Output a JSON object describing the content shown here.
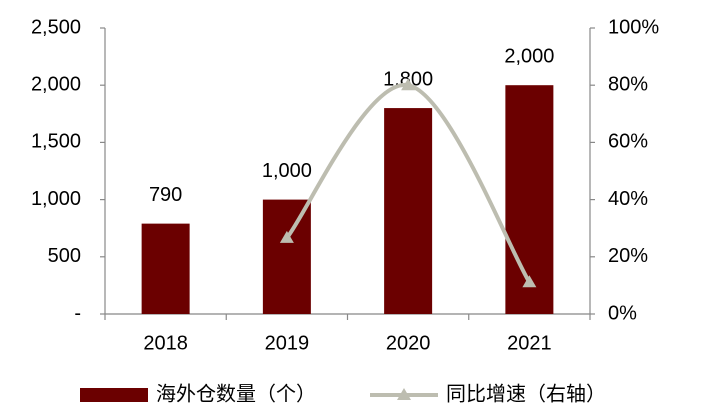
{
  "chart_data": {
    "type": "bar",
    "categories": [
      "2018",
      "2019",
      "2020",
      "2021"
    ],
    "series": [
      {
        "name": "海外仓数量（个）",
        "type": "bar",
        "color": "#6b0000",
        "values": [
          790,
          1000,
          1800,
          2000
        ],
        "value_labels": [
          "790",
          "1,000",
          "1,800",
          "2,000"
        ]
      },
      {
        "name": "同比增速（右轴）",
        "type": "line",
        "axis": "y2",
        "color": "#bdbdb0",
        "values": [
          null,
          26.6,
          80,
          11.1
        ]
      }
    ],
    "ylim": [
      0,
      2500
    ],
    "yticks": [
      {
        "value": 0,
        "label": "-"
      },
      500,
      {
        "value": 1000,
        "label": "1,000"
      },
      {
        "value": 1500,
        "label": "1,500"
      },
      {
        "value": 2000,
        "label": "2,000"
      },
      {
        "value": 2500,
        "label": "2,500"
      }
    ],
    "y2lim": [
      0,
      100
    ],
    "y2ticks": [
      {
        "value": 0,
        "label": "0%"
      },
      {
        "value": 20,
        "label": "20%"
      },
      {
        "value": 40,
        "label": "40%"
      },
      {
        "value": 60,
        "label": "60%"
      },
      {
        "value": 80,
        "label": "80%"
      },
      {
        "value": 100,
        "label": "100%"
      }
    ],
    "grid": false,
    "legend": "bottom"
  }
}
